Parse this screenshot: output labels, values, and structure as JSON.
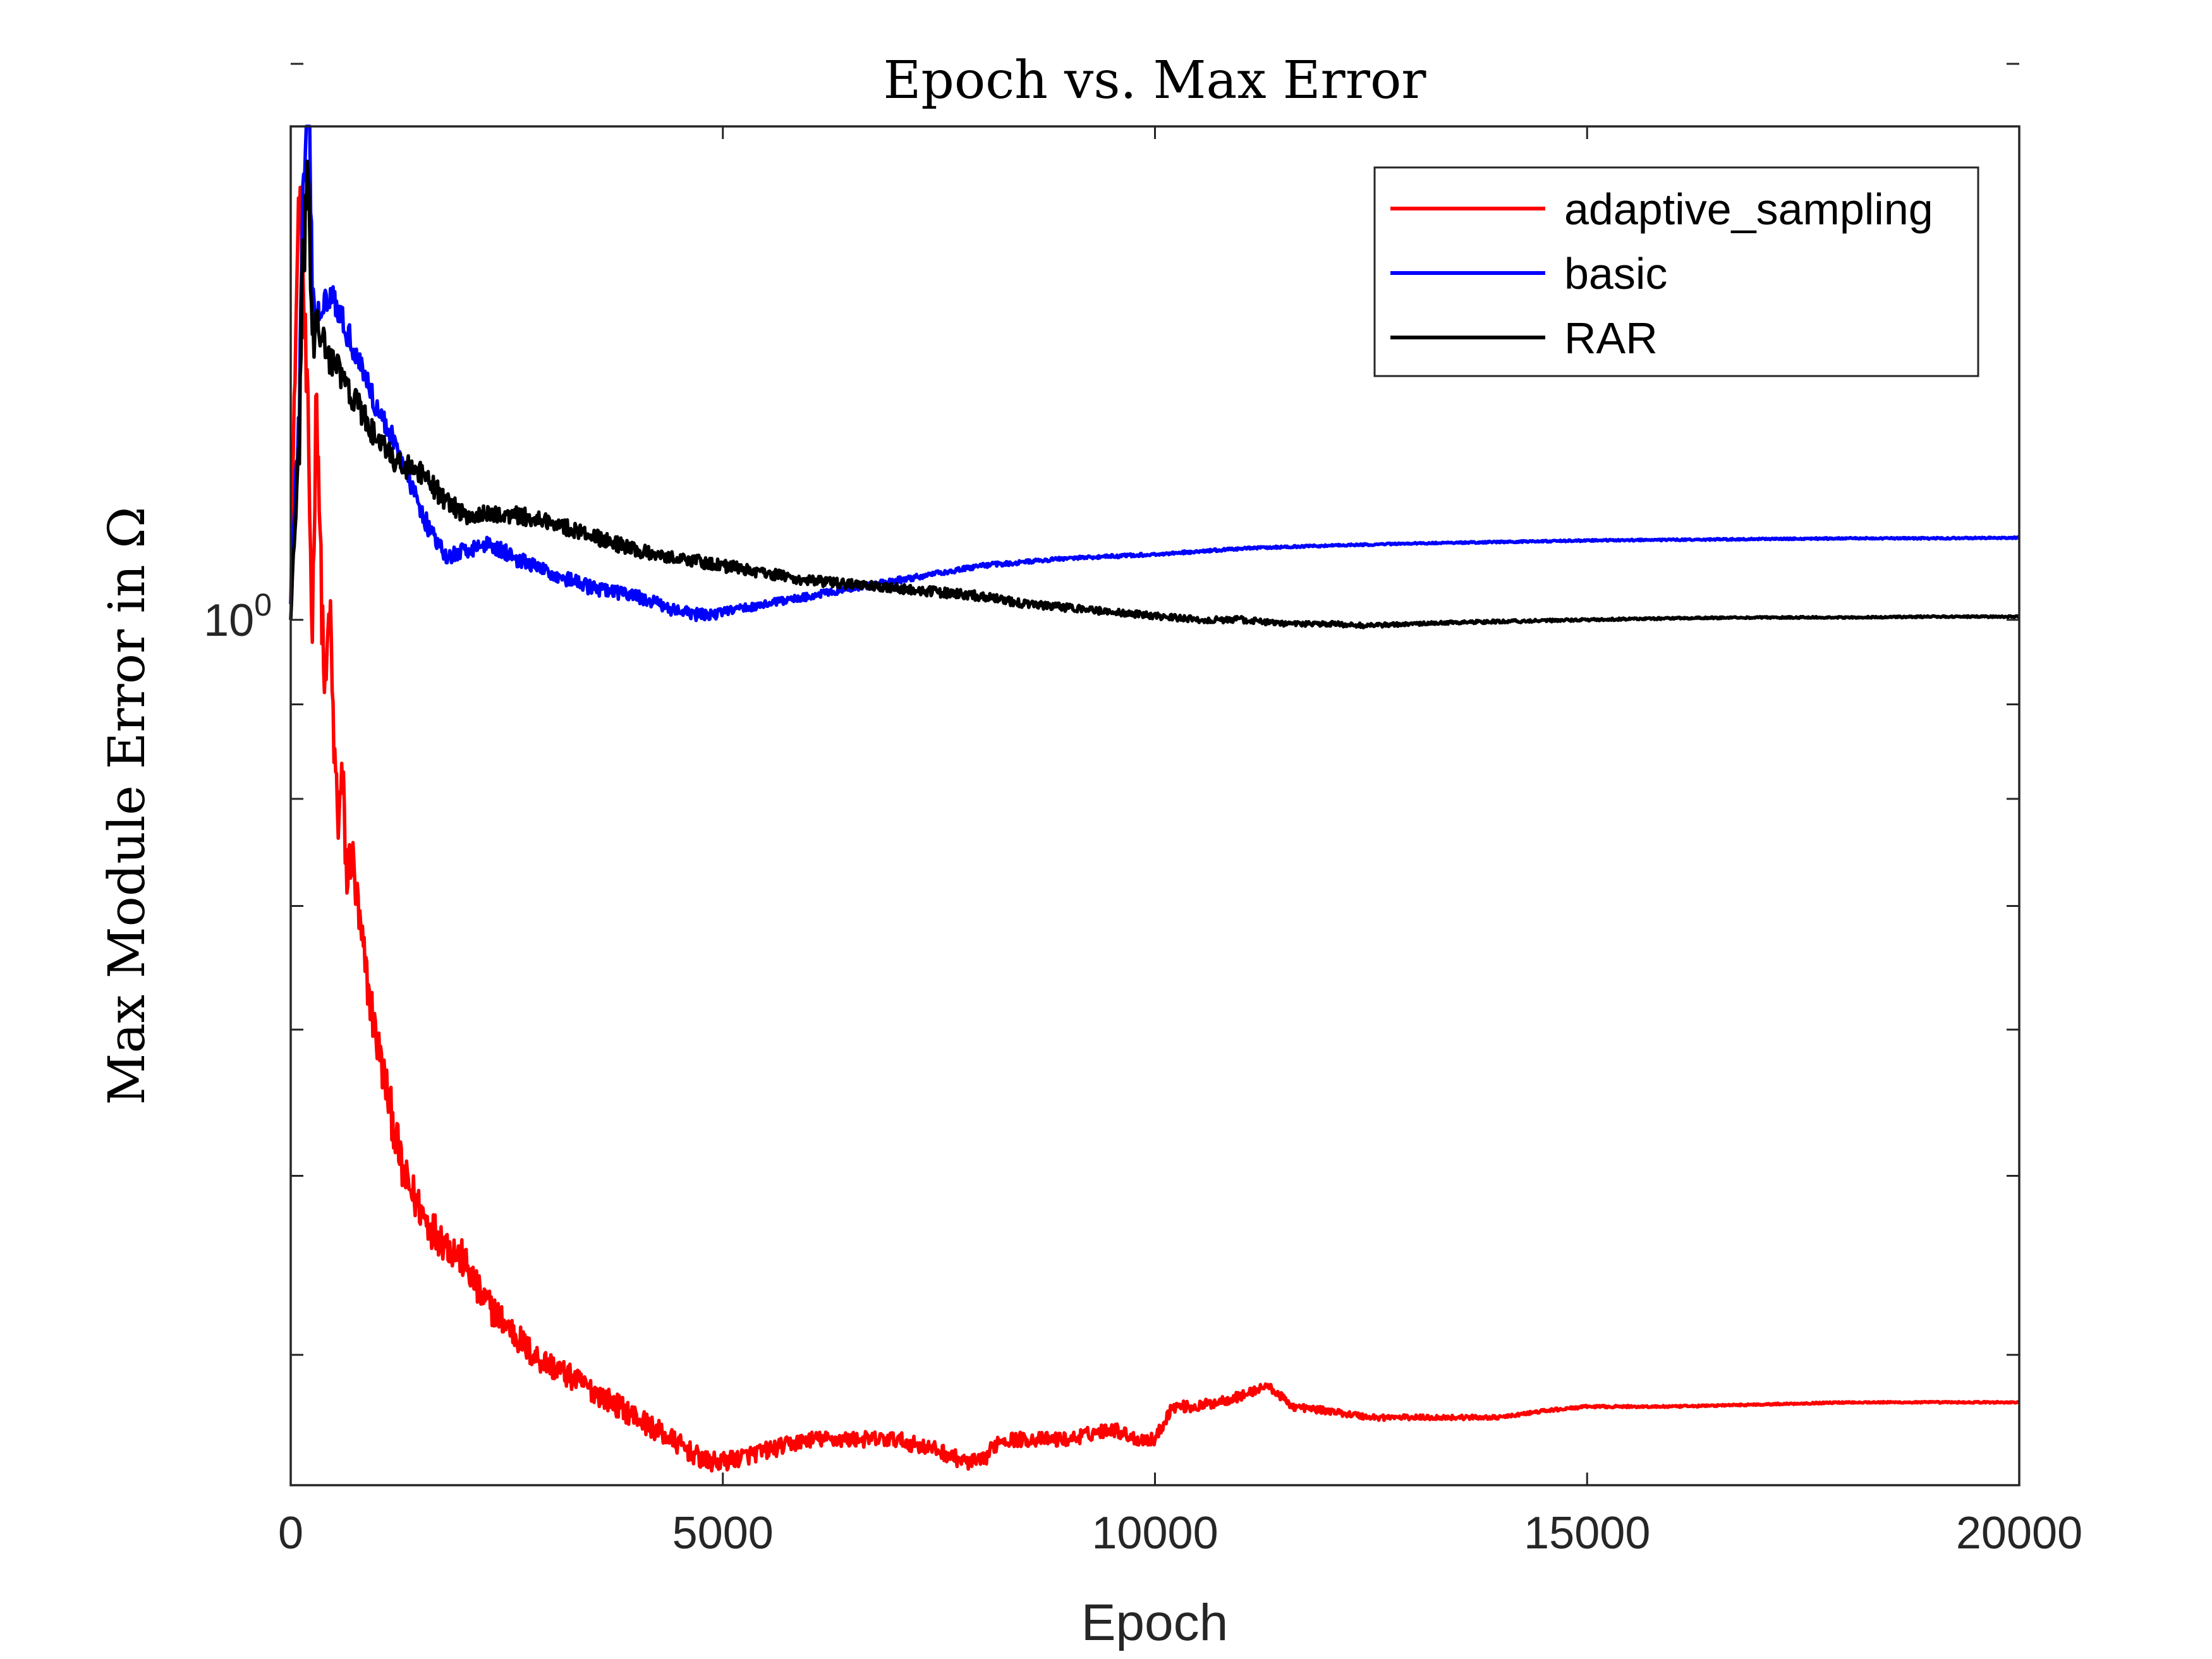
{
  "chart_data": {
    "type": "line",
    "title": "Epoch vs. Max Error",
    "xlabel": "Epoch",
    "ylabel": "Max Module Error in Ω",
    "xlim": [
      0,
      20000
    ],
    "ylim": [
      0.34,
      1.85
    ],
    "y_scale": "log",
    "grid": false,
    "legend_position": "top-right",
    "x_ticks": [
      {
        "value": 0,
        "label": "0"
      },
      {
        "value": 5000,
        "label": "5000"
      },
      {
        "value": 10000,
        "label": "10000"
      },
      {
        "value": 15000,
        "label": "15000"
      },
      {
        "value": 20000,
        "label": "20000"
      }
    ],
    "y_tick_label": {
      "value": 1,
      "base": "10",
      "exponent": "0"
    },
    "y_minor_ticks": [
      0.4,
      0.5,
      0.6,
      0.7,
      0.8,
      0.9,
      2
    ],
    "series": [
      {
        "name": "adaptive_sampling",
        "color": "#ff0000",
        "x": [
          0,
          100,
          200,
          250,
          300,
          350,
          400,
          450,
          500,
          550,
          600,
          650,
          700,
          800,
          900,
          1000,
          1100,
          1200,
          1300,
          1400,
          1500,
          1600,
          1800,
          2000,
          2200,
          2400,
          2600,
          2800,
          3000,
          3200,
          3400,
          3600,
          3800,
          4000,
          4200,
          4400,
          4600,
          4800,
          5000,
          5500,
          6000,
          6500,
          7000,
          7500,
          7800,
          8000,
          8200,
          8500,
          9000,
          9500,
          9800,
          10000,
          10200,
          10500,
          11000,
          11300,
          11600,
          12000,
          12500,
          13000,
          13500,
          14000,
          14500,
          15000,
          16000,
          17000,
          18000,
          19000,
          20000
        ],
        "y": [
          1.02,
          1.72,
          1.25,
          0.98,
          1.35,
          1.05,
          0.9,
          1.02,
          0.85,
          0.78,
          0.82,
          0.72,
          0.75,
          0.68,
          0.63,
          0.59,
          0.56,
          0.53,
          0.5,
          0.49,
          0.48,
          0.47,
          0.46,
          0.45,
          0.43,
          0.42,
          0.41,
          0.4,
          0.395,
          0.39,
          0.385,
          0.38,
          0.375,
          0.37,
          0.365,
          0.36,
          0.355,
          0.35,
          0.35,
          0.355,
          0.36,
          0.36,
          0.36,
          0.355,
          0.35,
          0.35,
          0.36,
          0.36,
          0.36,
          0.365,
          0.36,
          0.36,
          0.375,
          0.375,
          0.38,
          0.385,
          0.375,
          0.373,
          0.37,
          0.37,
          0.37,
          0.37,
          0.373,
          0.375,
          0.375,
          0.376,
          0.377,
          0.377,
          0.377
        ],
        "noise": [
          0,
          0.05,
          0.06,
          0.05,
          0.05,
          0.05,
          0.05,
          0.045,
          0.045,
          0.04,
          0.04,
          0.04,
          0.04,
          0.035,
          0.03,
          0.03,
          0.03,
          0.03,
          0.028,
          0.028,
          0.026,
          0.025,
          0.025,
          0.024,
          0.022,
          0.02,
          0.02,
          0.018,
          0.017,
          0.016,
          0.015,
          0.015,
          0.015,
          0.015,
          0.014,
          0.014,
          0.013,
          0.013,
          0.012,
          0.011,
          0.01,
          0.01,
          0.01,
          0.01,
          0.01,
          0.01,
          0.01,
          0.009,
          0.009,
          0.009,
          0.008,
          0.008,
          0.007,
          0.007,
          0.006,
          0.005,
          0.005,
          0.004,
          0.004,
          0.003,
          0.003,
          0.002,
          0.002,
          0.0015,
          0.0012,
          0.001,
          0.001,
          0.001,
          0.001
        ]
      },
      {
        "name": "basic",
        "color": "#0000ff",
        "x": [
          0,
          100,
          150,
          200,
          250,
          300,
          400,
          500,
          600,
          800,
          1000,
          1200,
          1400,
          1600,
          1800,
          2000,
          2300,
          2600,
          3000,
          3500,
          4000,
          4500,
          4800,
          5000,
          5500,
          6000,
          6500,
          7000,
          7500,
          8000,
          9000,
          10000,
          11000,
          12000,
          13000,
          14000,
          15000,
          16000,
          17000,
          18000,
          19000,
          20000
        ],
        "y": [
          1.02,
          1.3,
          1.75,
          1.95,
          1.5,
          1.45,
          1.5,
          1.5,
          1.45,
          1.38,
          1.3,
          1.25,
          1.18,
          1.12,
          1.08,
          1.09,
          1.1,
          1.08,
          1.06,
          1.04,
          1.03,
          1.01,
          1.005,
          1.01,
          1.02,
          1.03,
          1.04,
          1.05,
          1.06,
          1.07,
          1.08,
          1.085,
          1.093,
          1.097,
          1.1,
          1.102,
          1.104,
          1.105,
          1.106,
          1.107,
          1.107,
          1.108
        ],
        "noise": [
          0,
          0.03,
          0.06,
          0.06,
          0.03,
          0.02,
          0.02,
          0.02,
          0.018,
          0.016,
          0.015,
          0.014,
          0.013,
          0.012,
          0.01,
          0.01,
          0.01,
          0.01,
          0.009,
          0.009,
          0.008,
          0.008,
          0.008,
          0.006,
          0.005,
          0.005,
          0.004,
          0.004,
          0.003,
          0.003,
          0.002,
          0.002,
          0.0015,
          0.0012,
          0.001,
          0.001,
          0.001,
          0.001,
          0.001,
          0.001,
          0.001,
          0.001
        ]
      },
      {
        "name": "RAR",
        "color": "#000000",
        "x": [
          0,
          100,
          150,
          200,
          250,
          300,
          400,
          500,
          600,
          800,
          1000,
          1200,
          1500,
          1800,
          2000,
          2300,
          2600,
          3000,
          3500,
          4000,
          4500,
          5000,
          5500,
          6000,
          6500,
          7000,
          7500,
          8000,
          8500,
          9000,
          9500,
          10000,
          10500,
          11000,
          11500,
          12000,
          12500,
          13000,
          13500,
          14000,
          15000,
          16000,
          17000,
          18000,
          19000,
          20000
        ],
        "y": [
          1.0,
          1.25,
          1.6,
          1.75,
          1.4,
          1.45,
          1.4,
          1.38,
          1.35,
          1.3,
          1.25,
          1.22,
          1.2,
          1.16,
          1.14,
          1.14,
          1.14,
          1.13,
          1.11,
          1.09,
          1.08,
          1.07,
          1.06,
          1.05,
          1.045,
          1.04,
          1.035,
          1.03,
          1.02,
          1.015,
          1.01,
          1.005,
          1.0,
          1.0,
          0.995,
          0.995,
          0.993,
          0.995,
          0.997,
          0.998,
          1.0,
          1.002,
          1.003,
          1.003,
          1.004,
          1.004
        ],
        "noise": [
          0,
          0.04,
          0.06,
          0.05,
          0.03,
          0.025,
          0.025,
          0.022,
          0.02,
          0.018,
          0.016,
          0.015,
          0.014,
          0.013,
          0.012,
          0.011,
          0.011,
          0.01,
          0.01,
          0.009,
          0.008,
          0.008,
          0.007,
          0.007,
          0.006,
          0.006,
          0.006,
          0.006,
          0.005,
          0.005,
          0.004,
          0.004,
          0.004,
          0.004,
          0.003,
          0.003,
          0.003,
          0.002,
          0.002,
          0.002,
          0.0015,
          0.0012,
          0.001,
          0.001,
          0.001,
          0.001
        ]
      }
    ]
  }
}
